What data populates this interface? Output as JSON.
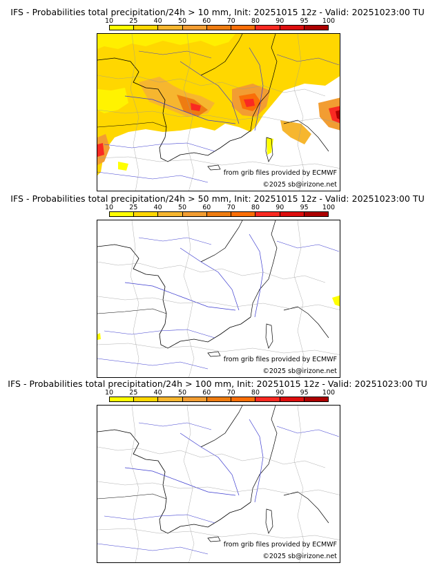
{
  "legend": {
    "ticks": [
      "10",
      "25",
      "40",
      "50",
      "60",
      "70",
      "80",
      "90",
      "95",
      "100"
    ],
    "colors": [
      "#ffff00",
      "#ffd700",
      "#f6b62f",
      "#f29d32",
      "#ee7c11",
      "#fa6e07",
      "#f92a22",
      "#dd0e0e",
      "#ac0000",
      "#6e0000"
    ]
  },
  "panels": [
    {
      "title": "IFS - Probabilities total precipitation/24h > 10 mm, Init: 20251015 12z - Valid: 20251023:00 TU",
      "credit_source": "from grib files provided by ECMWF",
      "credit_copyright": "©2025 sb@irizone.net",
      "coverage": "widespread"
    },
    {
      "title": "IFS - Probabilities total precipitation/24h > 50 mm, Init: 20251015 12z - Valid: 20251023:00 TU",
      "credit_source": "from grib files provided by ECMWF",
      "credit_copyright": "©2025 sb@irizone.net",
      "coverage": "minimal"
    },
    {
      "title": "IFS - Probabilities total precipitation/24h > 100 mm, Init: 20251015 12z - Valid: 20251023:00 TU",
      "credit_source": "from grib files provided by ECMWF",
      "credit_copyright": "©2025 sb@irizone.net",
      "coverage": "none"
    }
  ]
}
